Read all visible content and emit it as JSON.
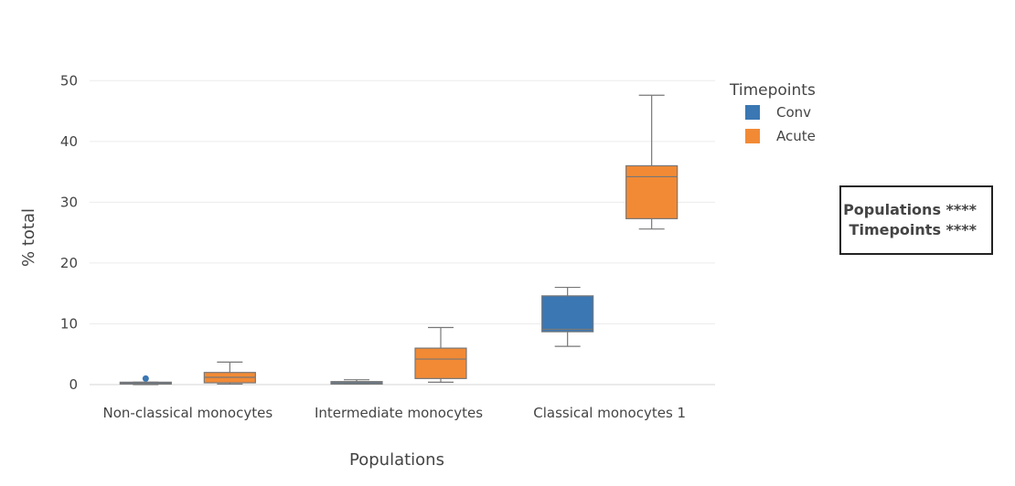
{
  "chart_data": {
    "type": "box",
    "xlabel": "Populations",
    "ylabel": "% total",
    "ylim": [
      -1.5,
      52
    ],
    "yticks": [
      0,
      10,
      20,
      30,
      40,
      50
    ],
    "categories": [
      "Non-classical monocytes",
      "Intermediate monocytes",
      "Classical monocytes 1"
    ],
    "legend": {
      "title": "Timepoints",
      "position": "top-right"
    },
    "grid": true,
    "series": [
      {
        "name": "Conv",
        "color": "#3a77b3",
        "boxes": [
          {
            "min": 0.0,
            "q1": 0.1,
            "median": 0.2,
            "q3": 0.4,
            "max": 0.4,
            "outliers": [
              1.0
            ]
          },
          {
            "min": 0.1,
            "q1": 0.1,
            "median": 0.3,
            "q3": 0.5,
            "max": 0.8,
            "outliers": []
          },
          {
            "min": 6.3,
            "q1": 8.7,
            "median": 9.1,
            "q3": 14.6,
            "max": 16.0,
            "outliers": []
          }
        ]
      },
      {
        "name": "Acute",
        "color": "#f28a35",
        "boxes": [
          {
            "min": 0.1,
            "q1": 0.3,
            "median": 1.2,
            "q3": 2.0,
            "max": 3.7,
            "outliers": []
          },
          {
            "min": 0.4,
            "q1": 1.0,
            "median": 4.2,
            "q3": 6.0,
            "max": 9.4,
            "outliers": []
          },
          {
            "min": 25.6,
            "q1": 27.3,
            "median": 34.2,
            "q3": 36.0,
            "max": 47.6,
            "outliers": []
          }
        ]
      }
    ]
  },
  "stats": {
    "line1": "Populations ****",
    "line2": "Timepoints ****"
  }
}
